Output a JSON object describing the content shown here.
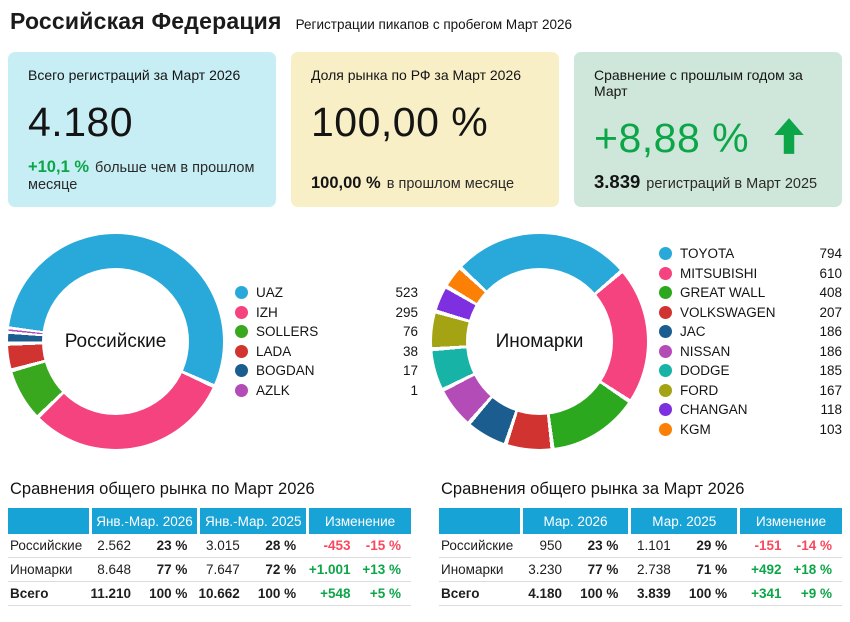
{
  "header": {
    "title": "Российская Федерация",
    "subtitle": "Регистрации пикапов с пробегом Март 2026"
  },
  "colors": {
    "positive": "#0ca648",
    "negative": "#f9485e",
    "table_header": "#17a3d5",
    "card_cyan": "#c7eef4",
    "card_yellow": "#f9efc6",
    "card_green": "#cfe7da"
  },
  "cards": [
    {
      "label": "Всего регистраций за Март 2026",
      "value": "4.180",
      "delta": "+10,1 %",
      "note": "больше чем в прошлом месяце",
      "bg": "#c7eef4"
    },
    {
      "label": "Доля рынка по РФ за Март 2026",
      "value": "100,00 %",
      "delta": "100,00 %",
      "note": "в прошлом месяце",
      "bg": "#f9efc6"
    },
    {
      "label": "Сравнение с прошлым годом за Март",
      "value": "+8,88 %",
      "delta": "3.839",
      "note": "регистраций в Март 2025",
      "bg": "#cfe7da",
      "arrow": "up"
    }
  ],
  "chart_data": [
    {
      "type": "pie",
      "title": "Российские",
      "legend_position": "right",
      "start_angle": 277,
      "donut": true,
      "labels": [
        "UAZ",
        "IZH",
        "SOLLERS",
        "LADA",
        "BOGDAN",
        "AZLK"
      ],
      "values": [
        523,
        295,
        76,
        38,
        17,
        1
      ],
      "colors": [
        "#29a9da",
        "#f4437e",
        "#39a81e",
        "#d13430",
        "#1c5d90",
        "#b44cb8"
      ]
    },
    {
      "type": "pie",
      "title": "Иномарки",
      "legend_position": "right",
      "start_angle": 313,
      "donut": true,
      "labels": [
        "TOYOTA",
        "MITSUBISHI",
        "GREAT WALL",
        "VOLKSWAGEN",
        "JAC",
        "NISSAN",
        "DODGE",
        "FORD",
        "CHANGAN",
        "KGM"
      ],
      "values": [
        794,
        610,
        408,
        207,
        186,
        186,
        185,
        167,
        118,
        103
      ],
      "colors": [
        "#29a9da",
        "#f4437e",
        "#2ca81e",
        "#d13430",
        "#1c5d90",
        "#b44cb8",
        "#16b3a6",
        "#a3a314",
        "#7e2fe0",
        "#fb8005"
      ]
    }
  ],
  "tables": [
    {
      "title": "Сравнения общего рынка по Март 2026",
      "col_groups": [
        "",
        "Янв.-Мар. 2026",
        "Янв.-Мар. 2025",
        "Изменение"
      ],
      "rows": [
        {
          "label": "Российские",
          "cells": [
            "2.562",
            "23 %",
            "3.015",
            "28 %",
            "-453",
            "-15 %"
          ],
          "bold": false
        },
        {
          "label": "Иномарки",
          "cells": [
            "8.648",
            "77 %",
            "7.647",
            "72 %",
            "+1.001",
            "+13 %"
          ],
          "bold": false
        },
        {
          "label": "Всего",
          "cells": [
            "11.210",
            "100 %",
            "10.662",
            "100 %",
            "+548",
            "+5 %"
          ],
          "bold": true
        }
      ]
    },
    {
      "title": "Сравнения общего рынка за Март 2026",
      "col_groups": [
        "",
        "Мар. 2026",
        "Мар. 2025",
        "Изменение"
      ],
      "rows": [
        {
          "label": "Российские",
          "cells": [
            "950",
            "23 %",
            "1.101",
            "29 %",
            "-151",
            "-14 %"
          ],
          "bold": false
        },
        {
          "label": "Иномарки",
          "cells": [
            "3.230",
            "77 %",
            "2.738",
            "71 %",
            "+492",
            "+18 %"
          ],
          "bold": false
        },
        {
          "label": "Всего",
          "cells": [
            "4.180",
            "100 %",
            "3.839",
            "100 %",
            "+341",
            "+9 %"
          ],
          "bold": true
        }
      ]
    }
  ]
}
